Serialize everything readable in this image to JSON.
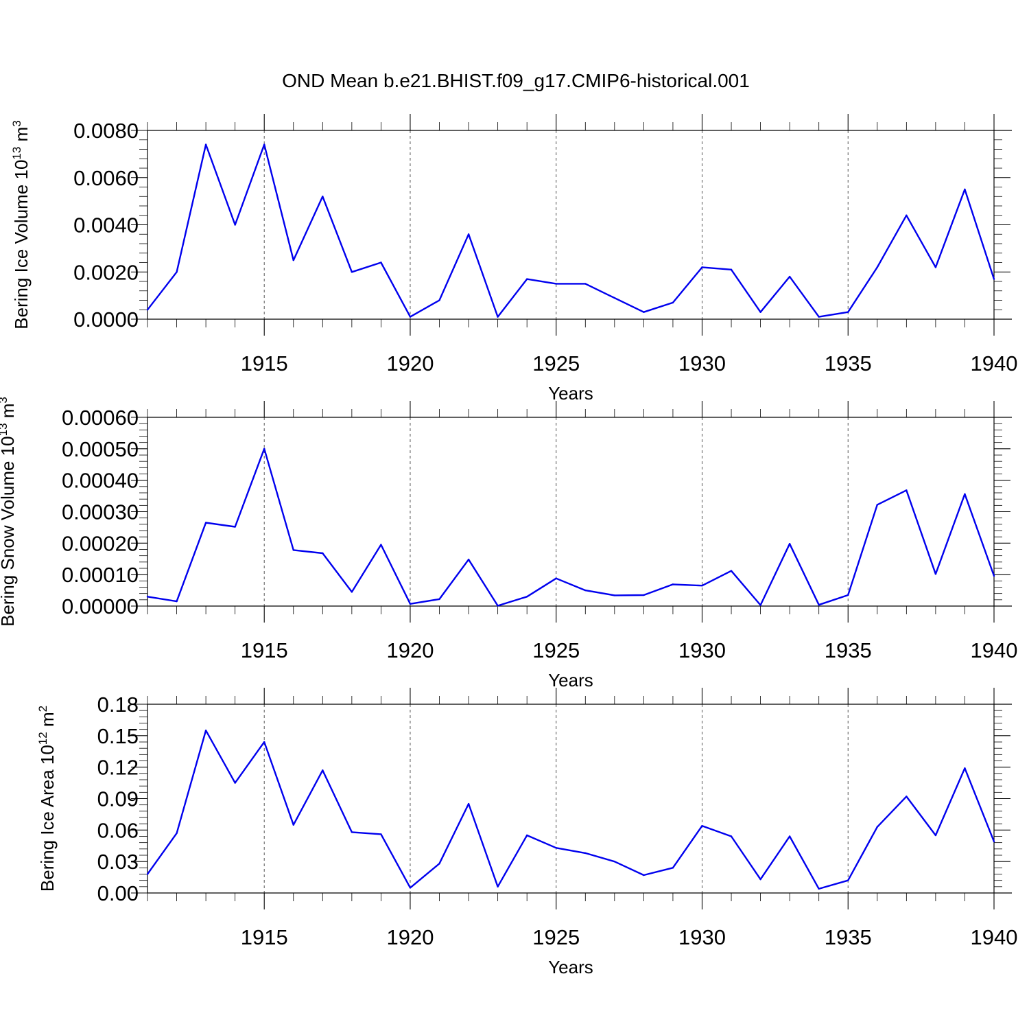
{
  "title": "OND Mean b.e21.BHIST.f09_g17.CMIP6-historical.001",
  "colors": {
    "series": "#0000ee",
    "axes": "#000000",
    "grid": "#555555",
    "background": "#ffffff"
  },
  "chart_data": [
    {
      "type": "line",
      "ylabel": {
        "text": "Bering Ice Volume 10",
        "sup": "13",
        "unit": " m",
        "unit_sup": "3"
      },
      "xlabel": "Years",
      "xlim": [
        1911,
        1940
      ],
      "ylim": [
        0,
        0.008
      ],
      "yticks": [
        0,
        0.002,
        0.004,
        0.006,
        0.008
      ],
      "ytick_labels": [
        "0.0000",
        "0.0020",
        "0.0040",
        "0.0060",
        "0.0080"
      ],
      "xticks": [
        1915,
        1920,
        1925,
        1930,
        1935,
        1940
      ],
      "xtick_labels": [
        "1915",
        "1920",
        "1925",
        "1930",
        "1935",
        "1940"
      ],
      "grid": "vertical dashed at major x ticks",
      "x": [
        1911,
        1912,
        1913,
        1914,
        1915,
        1916,
        1917,
        1918,
        1919,
        1920,
        1921,
        1922,
        1923,
        1924,
        1925,
        1926,
        1927,
        1928,
        1929,
        1930,
        1931,
        1932,
        1933,
        1934,
        1935,
        1936,
        1937,
        1938,
        1939,
        1940
      ],
      "values": [
        0.0004,
        0.002,
        0.0074,
        0.004,
        0.0074,
        0.0025,
        0.0052,
        0.002,
        0.0024,
        0.0001,
        0.0008,
        0.0036,
        0.0001,
        0.0017,
        0.0015,
        0.0015,
        0.0009,
        0.0003,
        0.0007,
        0.0022,
        0.0021,
        0.0003,
        0.0018,
        0.0001,
        0.0003,
        0.0022,
        0.0044,
        0.0022,
        0.0055,
        0.0017
      ]
    },
    {
      "type": "line",
      "ylabel": {
        "text": "Bering Snow Volume 10",
        "sup": "13",
        "unit": " m",
        "unit_sup": "3"
      },
      "xlabel": "Years",
      "xlim": [
        1911,
        1940
      ],
      "ylim": [
        0,
        0.0006
      ],
      "yticks": [
        0,
        0.0001,
        0.0002,
        0.0003,
        0.0004,
        0.0005,
        0.0006
      ],
      "ytick_labels": [
        "0.00000",
        "0.00010",
        "0.00020",
        "0.00030",
        "0.00040",
        "0.00050",
        "0.00060"
      ],
      "xticks": [
        1915,
        1920,
        1925,
        1930,
        1935,
        1940
      ],
      "xtick_labels": [
        "1915",
        "1920",
        "1925",
        "1930",
        "1935",
        "1940"
      ],
      "grid": "vertical dashed at major x ticks",
      "x": [
        1911,
        1912,
        1913,
        1914,
        1915,
        1916,
        1917,
        1918,
        1919,
        1920,
        1921,
        1922,
        1923,
        1924,
        1925,
        1926,
        1927,
        1928,
        1929,
        1930,
        1931,
        1932,
        1933,
        1934,
        1935,
        1936,
        1937,
        1938,
        1939,
        1940
      ],
      "values": [
        3e-05,
        1.5e-05,
        0.000265,
        0.000252,
        0.0005,
        0.000178,
        0.000168,
        4.5e-05,
        0.000195,
        7e-06,
        2.2e-05,
        0.000148,
        1e-06,
        3e-05,
        8.8e-05,
        5e-05,
        3.4e-05,
        3.5e-05,
        6.9e-05,
        6.5e-05,
        0.000112,
        3e-06,
        0.000198,
        4e-06,
        3.5e-05,
        0.000322,
        0.000368,
        0.000102,
        0.000356,
        9.6e-05
      ]
    },
    {
      "type": "line",
      "ylabel": {
        "text": "Bering Ice Area 10",
        "sup": "12",
        "unit": " m",
        "unit_sup": "2"
      },
      "xlabel": "Years",
      "xlim": [
        1911,
        1940
      ],
      "ylim": [
        0,
        0.18
      ],
      "yticks": [
        0,
        0.03,
        0.06,
        0.09,
        0.12,
        0.15,
        0.18
      ],
      "ytick_labels": [
        "0.00",
        "0.03",
        "0.06",
        "0.09",
        "0.12",
        "0.15",
        "0.18"
      ],
      "xticks": [
        1915,
        1920,
        1925,
        1930,
        1935,
        1940
      ],
      "xtick_labels": [
        "1915",
        "1920",
        "1925",
        "1930",
        "1935",
        "1940"
      ],
      "grid": "vertical dashed at major x ticks",
      "x": [
        1911,
        1912,
        1913,
        1914,
        1915,
        1916,
        1917,
        1918,
        1919,
        1920,
        1921,
        1922,
        1923,
        1924,
        1925,
        1926,
        1927,
        1928,
        1929,
        1930,
        1931,
        1932,
        1933,
        1934,
        1935,
        1936,
        1937,
        1938,
        1939,
        1940
      ],
      "values": [
        0.018,
        0.057,
        0.155,
        0.105,
        0.144,
        0.065,
        0.117,
        0.058,
        0.056,
        0.005,
        0.028,
        0.085,
        0.006,
        0.055,
        0.043,
        0.038,
        0.03,
        0.017,
        0.024,
        0.064,
        0.054,
        0.013,
        0.054,
        0.004,
        0.012,
        0.063,
        0.092,
        0.055,
        0.119,
        0.049
      ]
    }
  ]
}
